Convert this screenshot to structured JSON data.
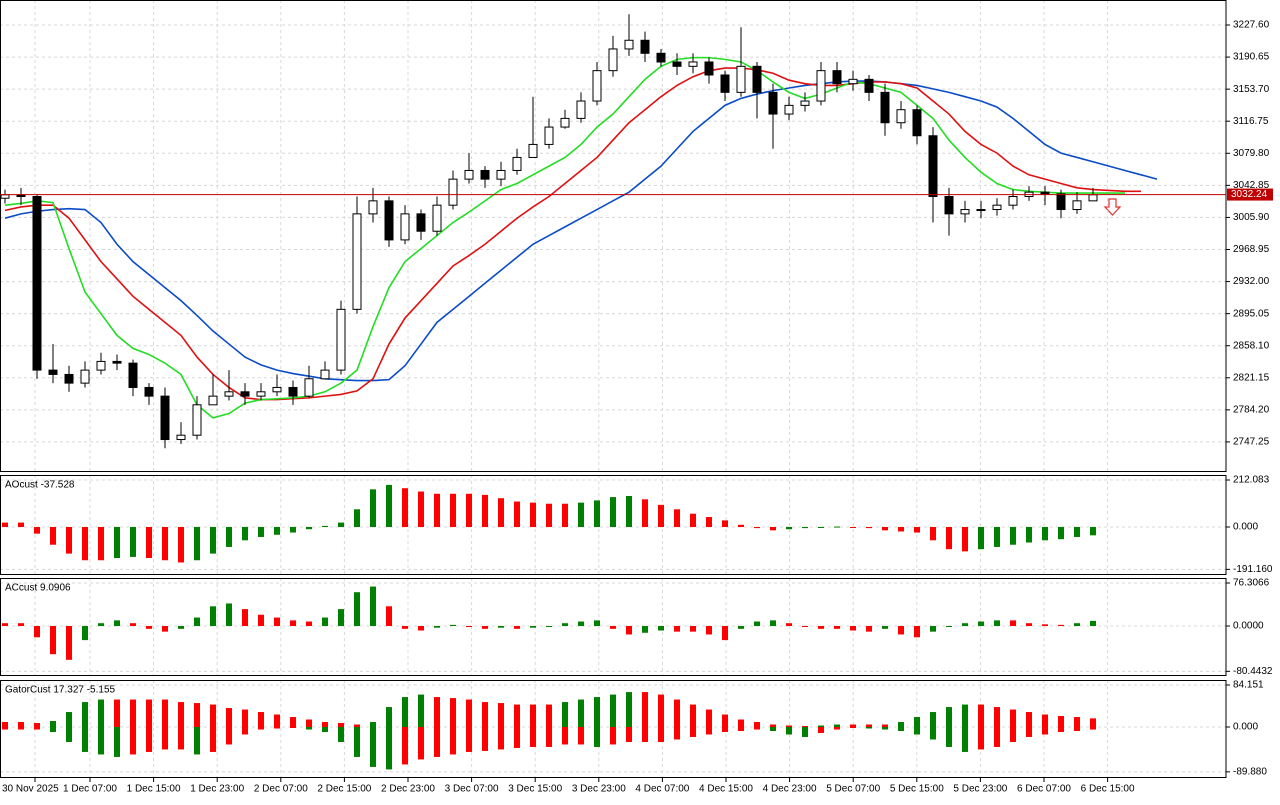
{
  "chart_data": [
    {
      "type": "candlestick",
      "open": [
        3028,
        3032,
        3030,
        2830,
        2825,
        2815,
        2830,
        2840,
        2838,
        2810,
        2800,
        2750,
        2755,
        2790,
        2800,
        2805,
        2800,
        2805,
        2810,
        2800,
        2820,
        2830,
        2900,
        3010,
        3025,
        2980,
        3010,
        2990,
        3020,
        3050,
        3060,
        3050,
        3060,
        3075,
        3090,
        3110,
        3120,
        3140,
        3175,
        3200,
        3210,
        3195,
        3185,
        3180,
        3185,
        3170,
        3150,
        3180,
        3150,
        3125,
        3135,
        3140,
        3175,
        3160,
        3165,
        3150,
        3115,
        3130,
        3100,
        3030,
        3010,
        3015,
        3015,
        3020,
        3030,
        3035,
        3033,
        3015,
        3025
      ],
      "high": [
        3038,
        3040,
        3032,
        2860,
        2835,
        2840,
        2850,
        2848,
        2842,
        2815,
        2810,
        2770,
        2800,
        2825,
        2830,
        2815,
        2815,
        2825,
        2818,
        2835,
        2840,
        2910,
        3030,
        3040,
        3030,
        3020,
        3015,
        3030,
        3060,
        3080,
        3065,
        3070,
        3085,
        3145,
        3120,
        3130,
        3150,
        3185,
        3215,
        3240,
        3220,
        3200,
        3195,
        3195,
        3190,
        3175,
        3225,
        3185,
        3160,
        3145,
        3150,
        3185,
        3185,
        3175,
        3170,
        3160,
        3140,
        3135,
        3110,
        3040,
        3025,
        3025,
        3028,
        3038,
        3042,
        3042,
        3038,
        3035,
        3040
      ],
      "low": [
        3022,
        3020,
        2820,
        2815,
        2805,
        2810,
        2825,
        2830,
        2800,
        2790,
        2740,
        2745,
        2750,
        2790,
        2795,
        2790,
        2795,
        2800,
        2790,
        2798,
        2822,
        2825,
        2895,
        3000,
        2972,
        2975,
        2980,
        2985,
        3015,
        3045,
        3040,
        3042,
        3055,
        3075,
        3085,
        3108,
        3115,
        3135,
        3168,
        3192,
        3185,
        3180,
        3170,
        3172,
        3160,
        3140,
        3145,
        3120,
        3085,
        3118,
        3128,
        3135,
        3150,
        3152,
        3140,
        3100,
        3108,
        3090,
        3000,
        2985,
        3000,
        3005,
        3008,
        3015,
        3025,
        3020,
        3005,
        3010,
        3025
      ],
      "close": [
        3032,
        3030,
        2830,
        2825,
        2815,
        2830,
        2840,
        2838,
        2810,
        2800,
        2750,
        2755,
        2790,
        2800,
        2805,
        2800,
        2805,
        2810,
        2800,
        2820,
        2830,
        2900,
        3010,
        3025,
        2980,
        3010,
        2990,
        3020,
        3050,
        3060,
        3050,
        3060,
        3075,
        3090,
        3110,
        3120,
        3140,
        3175,
        3200,
        3210,
        3195,
        3185,
        3180,
        3185,
        3170,
        3150,
        3180,
        3150,
        3125,
        3135,
        3140,
        3175,
        3160,
        3165,
        3150,
        3115,
        3130,
        3100,
        3030,
        3010,
        3015,
        3015,
        3020,
        3030,
        3035,
        3033,
        3015,
        3025,
        3032
      ],
      "series": [
        {
          "color": "#0a4bc8",
          "values": [
            3005,
            3010,
            3013,
            3015,
            3016,
            3015,
            3000,
            2975,
            2955,
            2940,
            2925,
            2910,
            2893,
            2875,
            2860,
            2845,
            2836,
            2830,
            2826,
            2823,
            2820,
            2819,
            2818,
            2818,
            2819,
            2835,
            2860,
            2885,
            2900,
            2915,
            2930,
            2945,
            2960,
            2975,
            2985,
            2995,
            3005,
            3015,
            3025,
            3035,
            3050,
            3065,
            3085,
            3105,
            3120,
            3135,
            3143,
            3148,
            3152,
            3155,
            3158,
            3160,
            3162,
            3163,
            3163,
            3162,
            3160,
            3158,
            3154,
            3150,
            3145,
            3140,
            3133,
            3120,
            3105,
            3090,
            3080,
            3075,
            3070,
            3065,
            3060,
            3055,
            3050
          ]
        },
        {
          "color": "#e01010",
          "values": [
            3014,
            3018,
            3020,
            3020,
            3005,
            2980,
            2955,
            2935,
            2915,
            2900,
            2885,
            2870,
            2845,
            2825,
            2810,
            2798,
            2796,
            2796,
            2797,
            2798,
            2800,
            2802,
            2806,
            2820,
            2860,
            2890,
            2910,
            2930,
            2950,
            2962,
            2975,
            2990,
            3005,
            3018,
            3030,
            3045,
            3060,
            3075,
            3095,
            3115,
            3130,
            3145,
            3158,
            3168,
            3175,
            3178,
            3178,
            3176,
            3172,
            3164,
            3160,
            3158,
            3158,
            3160,
            3162,
            3162,
            3160,
            3155,
            3140,
            3125,
            3105,
            3090,
            3080,
            3065,
            3055,
            3050,
            3045,
            3040,
            3038,
            3037,
            3036,
            3036
          ]
        },
        {
          "color": "#22dd22",
          "values": [
            3020,
            3022,
            3025,
            3023,
            2970,
            2920,
            2895,
            2870,
            2855,
            2848,
            2838,
            2825,
            2790,
            2775,
            2780,
            2792,
            2796,
            2797,
            2798,
            2800,
            2805,
            2815,
            2830,
            2880,
            2925,
            2955,
            2970,
            2985,
            3000,
            3012,
            3025,
            3038,
            3045,
            3055,
            3065,
            3075,
            3090,
            3110,
            3125,
            3145,
            3165,
            3180,
            3188,
            3190,
            3190,
            3188,
            3185,
            3175,
            3162,
            3150,
            3143,
            3148,
            3155,
            3162,
            3160,
            3155,
            3150,
            3135,
            3120,
            3095,
            3075,
            3058,
            3045,
            3038,
            3036,
            3035,
            3034,
            3034,
            3034,
            3034,
            3034
          ]
        }
      ],
      "ylim": [
        2712.6,
        3256.4
      ],
      "yticks": [
        {
          "value": 3227.6,
          "label": "3227.60"
        },
        3190.65,
        {
          "value": 3153.7,
          "label": "3153.70"
        },
        3116.75,
        {
          "value": 3079.8,
          "label": "3079.80"
        },
        3042.85,
        {
          "value": 3005.9,
          "label": "3005.90"
        },
        2968.95,
        {
          "value": 2932,
          "label": "2932.00"
        },
        2895.05,
        {
          "value": 2858.1,
          "label": "2858.10"
        },
        2821.15,
        {
          "value": 2784.2,
          "label": "2784.20"
        },
        2747.25
      ],
      "last_price": 3032.24,
      "last_price_color": "#c00000",
      "grid": true
    },
    {
      "type": "bar",
      "title": "AOcust -37.528",
      "values": [
        20,
        20,
        -30,
        -80,
        -120,
        -150,
        -150,
        -140,
        -135,
        -140,
        -150,
        -160,
        -150,
        -120,
        -90,
        -60,
        -45,
        -35,
        -25,
        -10,
        5,
        20,
        80,
        170,
        190,
        175,
        160,
        150,
        150,
        150,
        145,
        130,
        115,
        110,
        105,
        105,
        110,
        120,
        135,
        140,
        125,
        100,
        80,
        60,
        45,
        30,
        10,
        -5,
        -15,
        -10,
        -5,
        0,
        2,
        0,
        -5,
        -15,
        -20,
        -25,
        -60,
        -100,
        -110,
        -100,
        -90,
        -80,
        -70,
        -60,
        -55,
        -45,
        -37.528
      ],
      "up_color": "#008000",
      "down_color": "#ff0000",
      "ylim": [
        -216.6,
        234.7
      ],
      "yticks": [
        212.083,
        {
          "value": 0,
          "label": "0.000"
        },
        {
          "value": -191.16,
          "label": "-191.160"
        }
      ],
      "grid": true
    },
    {
      "type": "bar",
      "title": "ACcust 9.0906",
      "values": [
        5,
        5,
        -20,
        -50,
        -60,
        -25,
        5,
        10,
        5,
        -5,
        -10,
        -5,
        15,
        35,
        40,
        30,
        20,
        15,
        10,
        8,
        15,
        30,
        60,
        70,
        35,
        -5,
        -8,
        -3,
        2,
        0,
        -5,
        -3,
        -5,
        -3,
        0,
        5,
        8,
        10,
        -5,
        -15,
        -12,
        -8,
        -10,
        -10,
        -15,
        -25,
        -5,
        8,
        10,
        5,
        0,
        -5,
        -5,
        -8,
        -10,
        -5,
        -15,
        -20,
        -10,
        0,
        5,
        8,
        10,
        10,
        5,
        3,
        2,
        5,
        9.0906
      ],
      "up_color": "#008000",
      "down_color": "#ff0000",
      "ylim": [
        -88.7,
        85.2
      ],
      "yticks": [
        76.3066,
        {
          "value": 0,
          "label": "0.0000"
        },
        -80.4432
      ],
      "grid": true
    },
    {
      "type": "gator",
      "title": "GatorCust 17.327 -5.155",
      "upper": [
        10,
        10,
        8,
        12,
        30,
        50,
        55,
        55,
        55,
        55,
        55,
        50,
        48,
        45,
        38,
        35,
        30,
        25,
        20,
        15,
        10,
        8,
        5,
        10,
        40,
        60,
        65,
        60,
        58,
        55,
        50,
        48,
        45,
        45,
        45,
        50,
        55,
        60,
        65,
        70,
        70,
        65,
        55,
        45,
        35,
        25,
        15,
        10,
        5,
        3,
        2,
        3,
        5,
        5,
        5,
        5,
        10,
        20,
        30,
        40,
        45,
        45,
        40,
        35,
        30,
        25,
        22,
        20,
        17.327
      ],
      "lower": [
        -5,
        -5,
        -5,
        -10,
        -30,
        -50,
        -55,
        -60,
        -55,
        -50,
        -45,
        -45,
        -55,
        -50,
        -35,
        -15,
        -5,
        -3,
        -2,
        -5,
        -10,
        -30,
        -60,
        -80,
        -85,
        -75,
        -65,
        -60,
        -55,
        -50,
        -48,
        -45,
        -42,
        -40,
        -40,
        -35,
        -35,
        -40,
        -35,
        -30,
        -30,
        -30,
        -25,
        -20,
        -15,
        -10,
        -8,
        -5,
        -8,
        -15,
        -20,
        -12,
        -5,
        -2,
        -3,
        -5,
        -8,
        -15,
        -25,
        -40,
        -50,
        -45,
        -40,
        -30,
        -20,
        -15,
        -10,
        -8,
        -5.155
      ],
      "up_color": "#008000",
      "down_color": "#ff0000",
      "ylim": [
        -102.2,
        94.2
      ],
      "yticks": [
        84.151,
        {
          "value": 0,
          "label": "0.000"
        },
        {
          "value": -89.88,
          "label": "-89.880"
        }
      ],
      "grid": true,
      "x_labels": [
        "30 Nov 2025",
        "1 Dec 07:00",
        "1 Dec 15:00",
        "1 Dec 23:00",
        "2 Dec 07:00",
        "2 Dec 15:00",
        "2 Dec 23:00",
        "3 Dec 07:00",
        "3 Dec 15:00",
        "3 Dec 23:00",
        "4 Dec 07:00",
        "4 Dec 15:00",
        "4 Dec 23:00",
        "5 Dec 07:00",
        "5 Dec 15:00",
        "5 Dec 23:00",
        "6 Dec 07:00",
        "6 Dec 15:00"
      ]
    }
  ]
}
